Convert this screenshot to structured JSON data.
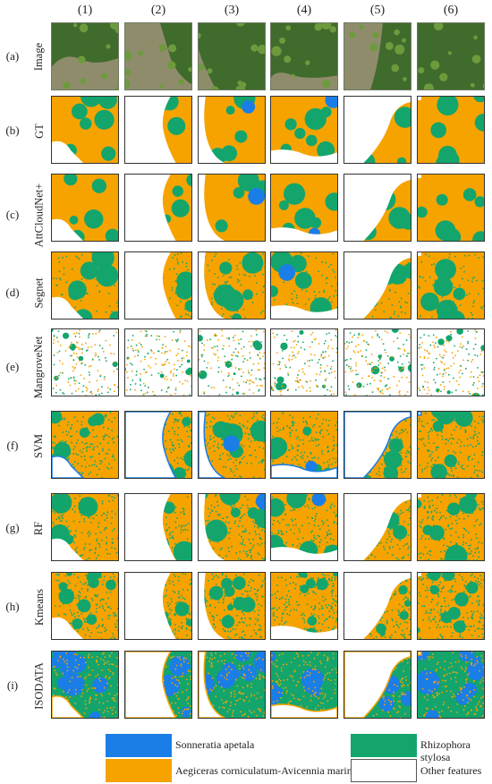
{
  "column_headers": [
    "(1)",
    "(2)",
    "(3)",
    "(4)",
    "(5)",
    "(6)"
  ],
  "rows": [
    {
      "letter": "(a)",
      "name": "Image"
    },
    {
      "letter": "(b)",
      "name": "GT"
    },
    {
      "letter": "(c)",
      "name": "AttCloudNet+"
    },
    {
      "letter": "(d)",
      "name": "Segnet"
    },
    {
      "letter": "(e)",
      "name": "MangroveNet"
    },
    {
      "letter": "(f)",
      "name": "SVM"
    },
    {
      "letter": "(g)",
      "name": "RF"
    },
    {
      "letter": "(h)",
      "name": "Kmeans"
    },
    {
      "letter": "(i)",
      "name": "ISODATA"
    }
  ],
  "legend": {
    "sonneratia": {
      "label": "Sonneratia apetala",
      "color": "#1a7ee6"
    },
    "aegiceras": {
      "label": "Aegiceras corniculatum-Avicennia marina",
      "color": "#f6a300"
    },
    "rhizophora": {
      "label": "Rhizophora stylosa",
      "color": "#13a56c"
    },
    "other": {
      "label": "Other features",
      "color": "#ffffff"
    }
  },
  "colors": {
    "water": "#8f8c6c",
    "forest": "#3f6b2c",
    "forest_light": "#6e9a3e",
    "cell_border": "#333333"
  }
}
